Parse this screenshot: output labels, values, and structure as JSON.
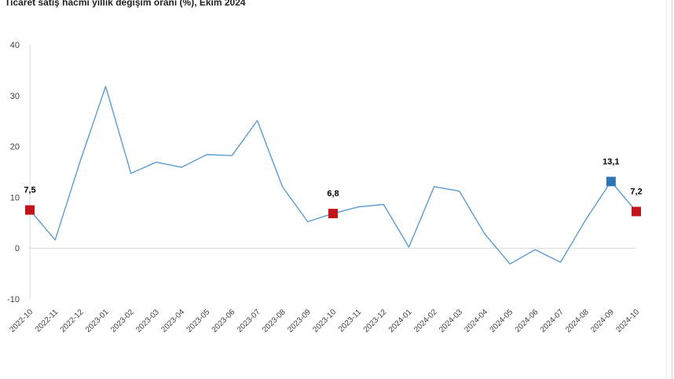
{
  "chart_data": {
    "type": "line",
    "title": "Ticaret satış hacmi yıllık değişim oranı (%), Ekim 2024",
    "xlabel": "",
    "ylabel": "",
    "ylim": [
      -10,
      40
    ],
    "yticks": [
      -10,
      0,
      10,
      20,
      30,
      40
    ],
    "grid": false,
    "legend": "none",
    "categories": [
      "2022-10",
      "2022-11",
      "2022-12",
      "2023-01",
      "2023-02",
      "2023-03",
      "2023-04",
      "2023-05",
      "2023-06",
      "2023-07",
      "2023-08",
      "2023-09",
      "2023-10",
      "2023-11",
      "2023-12",
      "2024-01",
      "2024-02",
      "2024-03",
      "2024-04",
      "2024-05",
      "2024-06",
      "2024-07",
      "2024-08",
      "2024-09",
      "2024-10"
    ],
    "series": [
      {
        "values": [
          7.5,
          1.6,
          17.2,
          31.8,
          14.7,
          16.9,
          15.9,
          18.4,
          18.2,
          25.1,
          12.0,
          5.2,
          6.8,
          8.1,
          8.6,
          0.2,
          12.1,
          11.2,
          2.8,
          -3.1,
          -0.3,
          -2.8,
          5.6,
          13.1,
          7.2
        ],
        "color": "#5b9bd5"
      }
    ],
    "highlights": [
      {
        "index": 0,
        "label": "7,5",
        "color": "#c0131a"
      },
      {
        "index": 12,
        "label": "6,8",
        "color": "#c0131a"
      },
      {
        "index": 23,
        "label": "13,1",
        "color": "#2e75b6"
      },
      {
        "index": 24,
        "label": "7,2",
        "color": "#c0131a"
      }
    ],
    "colors": {
      "axis": "#d9d9d9",
      "text": "#404040",
      "label": "#000000"
    }
  }
}
